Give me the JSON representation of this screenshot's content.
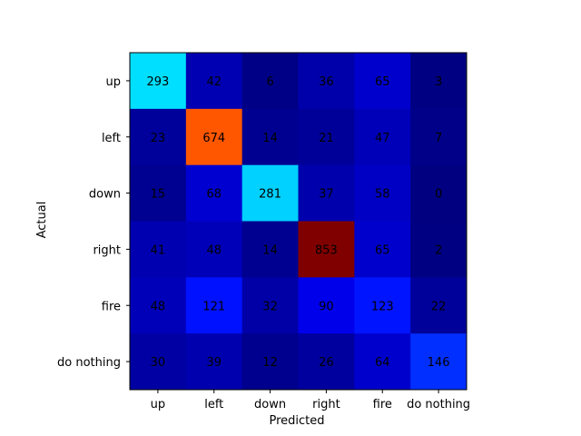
{
  "chart_data": {
    "type": "heatmap",
    "title": "",
    "xlabel": "Predicted",
    "ylabel": "Actual",
    "x_categories": [
      "up",
      "left",
      "down",
      "right",
      "fire",
      "do nothing"
    ],
    "y_categories": [
      "up",
      "left",
      "down",
      "right",
      "fire",
      "do nothing"
    ],
    "values": [
      [
        293,
        42,
        6,
        36,
        65,
        3
      ],
      [
        23,
        674,
        14,
        21,
        47,
        7
      ],
      [
        15,
        68,
        281,
        37,
        58,
        0
      ],
      [
        41,
        48,
        14,
        853,
        65,
        2
      ],
      [
        48,
        121,
        32,
        90,
        123,
        22
      ],
      [
        30,
        39,
        12,
        26,
        64,
        146
      ]
    ],
    "colormap": "jet",
    "vmin": 0,
    "vmax": 853
  }
}
